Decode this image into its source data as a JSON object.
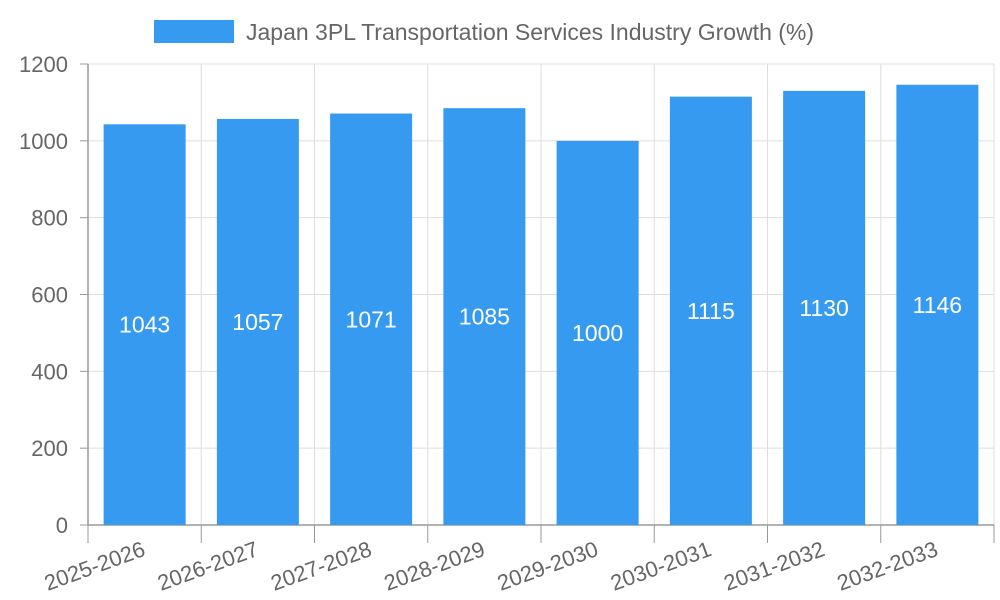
{
  "chart_data": {
    "type": "bar",
    "categories": [
      "2025-2026",
      "2026-2027",
      "2027-2028",
      "2028-2029",
      "2029-2030",
      "2030-2031",
      "2031-2032",
      "2032-2033"
    ],
    "series": [
      {
        "name": "Japan 3PL Transportation Services Industry Growth (%)",
        "values": [
          1043,
          1057,
          1071,
          1085,
          1000,
          1115,
          1130,
          1146
        ],
        "color": "#369bf0"
      }
    ],
    "data_labels": [
      "1043",
      "1057",
      "1071",
      "1085",
      "1000",
      "1115",
      "1130",
      "1146"
    ],
    "ylim": [
      0,
      1200
    ],
    "y_ticks": [
      0,
      200,
      400,
      600,
      800,
      1000,
      1200
    ],
    "y_tick_labels": [
      "0",
      "200",
      "400",
      "600",
      "800",
      "1000",
      "1200"
    ],
    "grid": true,
    "legend_position": "top-center",
    "title": "",
    "xlabel": "",
    "ylabel": ""
  }
}
